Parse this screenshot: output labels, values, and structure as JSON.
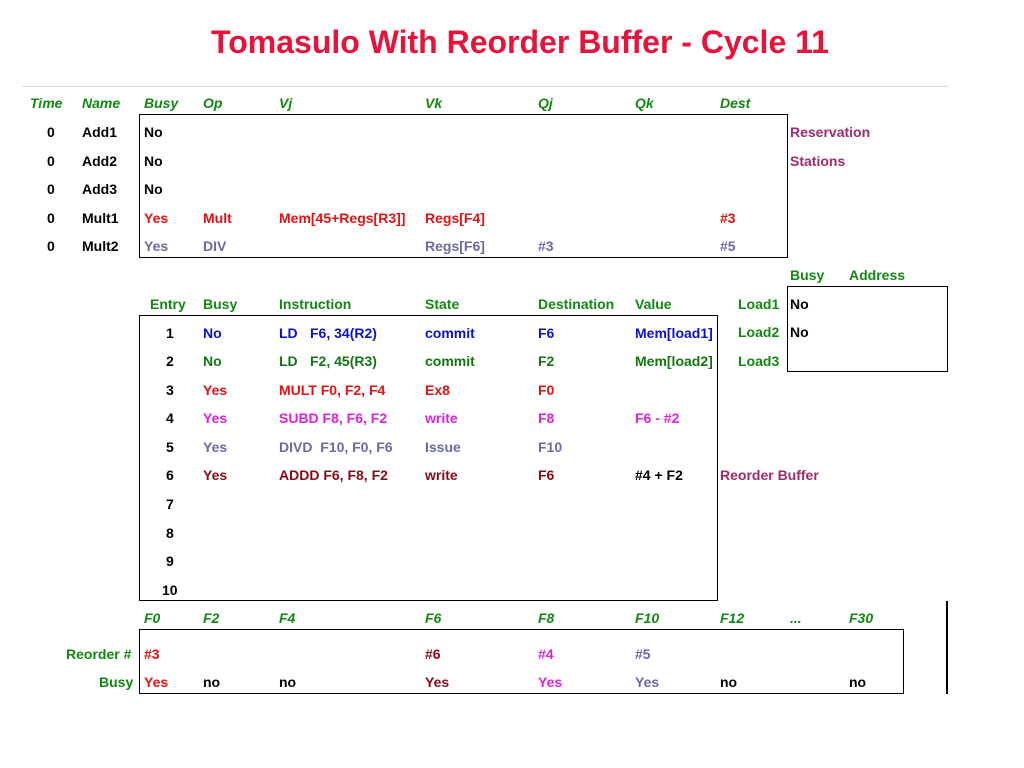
{
  "title": "Tomasulo With Reorder Buffer - Cycle 11",
  "rs": {
    "headers": [
      "Time",
      "Name",
      "Busy",
      "Op",
      "Vj",
      "Vk",
      "Qj",
      "Qk",
      "Dest"
    ],
    "rows": [
      {
        "time": "0",
        "name": "Add1",
        "busy": "No",
        "op": "",
        "vj": "",
        "vk": "",
        "qj": "",
        "qk": "",
        "dest": ""
      },
      {
        "time": "0",
        "name": "Add2",
        "busy": "No",
        "op": "",
        "vj": "",
        "vk": "",
        "qj": "",
        "qk": "",
        "dest": ""
      },
      {
        "time": "0",
        "name": "Add3",
        "busy": "No",
        "op": "",
        "vj": "",
        "vk": "",
        "qj": "",
        "qk": "",
        "dest": ""
      },
      {
        "time": "0",
        "name": "Mult1",
        "busy": "Yes",
        "op": "Mult",
        "vj": "Mem[45+Regs[R3]]",
        "vk": "Regs[F4]",
        "qj": "",
        "qk": "",
        "dest": "#3"
      },
      {
        "time": "0",
        "name": "Mult2",
        "busy": "Yes",
        "op": "DIV",
        "vj": "",
        "vk": "Regs[F6]",
        "qj": "#3",
        "qk": "",
        "dest": "#5"
      }
    ],
    "label_line1": "Reservation",
    "label_line2": "Stations"
  },
  "load": {
    "headers": [
      "Busy",
      "Address"
    ],
    "rows": [
      {
        "name": "Load1",
        "busy": "No",
        "address": ""
      },
      {
        "name": "Load2",
        "busy": "No",
        "address": ""
      },
      {
        "name": "Load3",
        "busy": "",
        "address": ""
      }
    ]
  },
  "rob": {
    "headers": [
      "Entry",
      "Busy",
      "Instruction",
      "State",
      "Destination",
      "Value"
    ],
    "rows": [
      {
        "entry": "1",
        "busy": "No",
        "instr_op": "LD",
        "instr_args": "F6, 34(R2)",
        "state": "commit",
        "dest": "F6",
        "value": "Mem[load1]"
      },
      {
        "entry": "2",
        "busy": "No",
        "instr_op": "LD",
        "instr_args": "F2, 45(R3)",
        "state": "commit",
        "dest": "F2",
        "value": "Mem[load2]"
      },
      {
        "entry": "3",
        "busy": "Yes",
        "instr_op": "MULT F0, F2, F4",
        "instr_args": "",
        "state": "Ex8",
        "dest": "F0",
        "value": ""
      },
      {
        "entry": "4",
        "busy": "Yes",
        "instr_op": "SUBD F8, F6, F2",
        "instr_args": "",
        "state": "write",
        "dest": "F8",
        "value": "F6 - #2"
      },
      {
        "entry": "5",
        "busy": "Yes",
        "instr_op": "DIVD  F10, F0, F6",
        "instr_args": "",
        "state": "Issue",
        "dest": "F10",
        "value": ""
      },
      {
        "entry": "6",
        "busy": "Yes",
        "instr_op": "ADDD F6, F8, F2",
        "instr_args": "",
        "state": "write",
        "dest": "F6",
        "value": "#4 + F2"
      },
      {
        "entry": "7"
      },
      {
        "entry": "8"
      },
      {
        "entry": "9"
      },
      {
        "entry": "10"
      }
    ],
    "label": "Reorder Buffer"
  },
  "regs": {
    "headers": [
      "F0",
      "F2",
      "F4",
      "F6",
      "F8",
      "F10",
      "F12",
      "...",
      "F30"
    ],
    "reorder_label": "Reorder #",
    "busy_label": "Busy",
    "reorder": [
      "#3",
      "",
      "",
      "#6",
      "#4",
      "#5",
      "",
      "",
      ""
    ],
    "busy": [
      "Yes",
      "no",
      "no",
      "Yes",
      "Yes",
      "Yes",
      "no",
      "",
      "no"
    ]
  },
  "colors": {
    "title": "#e8133a",
    "header": "#118811",
    "red": "#e81010",
    "dark_red": "#8a0a1a",
    "blue": "#0a10d8",
    "grey_blue": "#6a6aa8",
    "magenta": "#e020e0",
    "plum": "#a02b6a"
  }
}
